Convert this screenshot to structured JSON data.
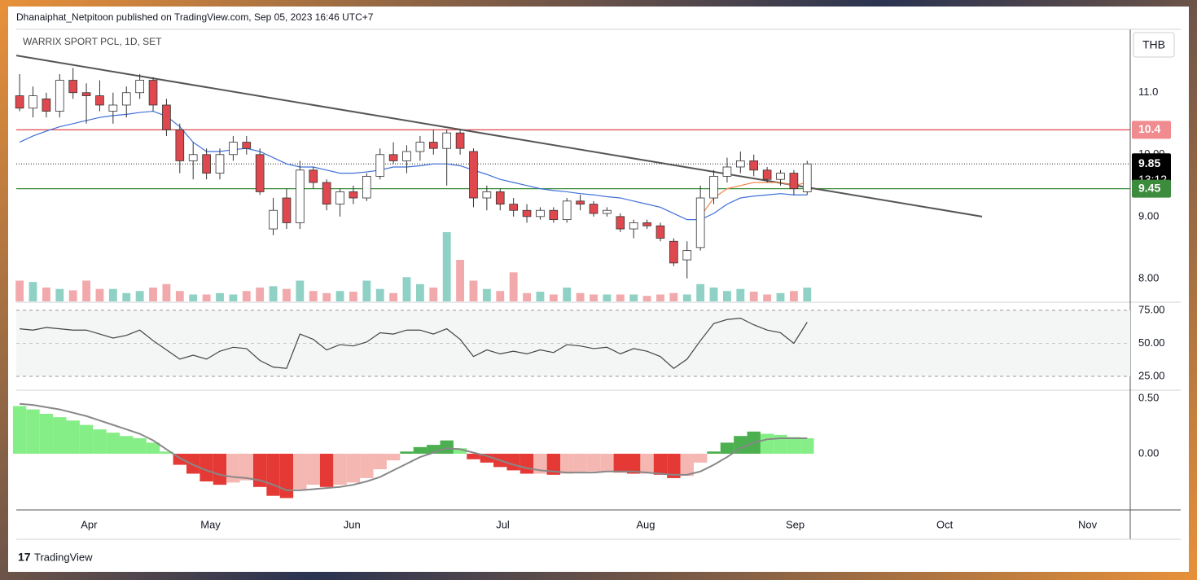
{
  "header": {
    "publisher": "Dhanaiphat_Netpitoon published on TradingView.com, Sep 05, 2023 16:46 UTC+7",
    "symbol": "WARRIX SPORT PCL, 1D, SET",
    "currency": "THB"
  },
  "footer": {
    "logo": "TradingView"
  },
  "chart_data": [
    {
      "type": "candlestick",
      "xlim": [
        -0.25,
        83.2
      ],
      "xticks": [
        {
          "value": 5.2,
          "label": "Apr"
        },
        {
          "value": 14.3,
          "label": "May"
        },
        {
          "value": 24.9,
          "label": "Jun"
        },
        {
          "value": 36.2,
          "label": "Jul"
        },
        {
          "value": 46.9,
          "label": "Aug"
        },
        {
          "value": 58.1,
          "label": "Sep"
        },
        {
          "value": 69.3,
          "label": "Oct"
        },
        {
          "value": 80,
          "label": "Nov"
        }
      ],
      "ylim": [
        7.63,
        11.97
      ],
      "yticks": [
        8,
        9,
        10,
        11
      ],
      "ytick_labels": [
        "8.00",
        "9.00",
        "10.00",
        "11.0"
      ],
      "up_color": "#ffffff",
      "down_color": "#e0484f",
      "volume_up_color": "#8fd1c4",
      "volume_down_color": "#f2a9ac",
      "open": [
        10.95,
        10.75,
        10.9,
        10.7,
        11.2,
        11.0,
        10.95,
        10.7,
        10.8,
        11.0,
        11.2,
        10.8,
        10.4,
        9.9,
        10.0,
        9.7,
        10.0,
        10.2,
        10.0,
        8.8,
        9.3,
        8.9,
        9.75,
        9.55,
        9.2,
        9.4,
        9.3,
        9.65,
        10.0,
        9.9,
        10.05,
        10.2,
        10.1,
        10.35,
        10.05,
        9.3,
        9.4,
        9.2,
        9.1,
        9.0,
        9.1,
        8.95,
        9.25,
        9.2,
        9.05,
        9.0,
        8.8,
        8.9,
        8.85,
        8.6,
        8.3,
        8.5,
        9.3,
        9.65,
        9.8,
        9.9,
        9.75,
        9.6,
        9.7,
        9.4
      ],
      "high": [
        11.3,
        11.1,
        11.0,
        11.3,
        11.4,
        11.15,
        11.2,
        11.0,
        11.1,
        11.3,
        11.25,
        10.9,
        10.5,
        10.2,
        10.1,
        10.1,
        10.3,
        10.3,
        10.1,
        9.3,
        9.45,
        9.9,
        9.8,
        9.6,
        9.45,
        9.5,
        9.7,
        10.1,
        10.2,
        10.15,
        10.3,
        10.4,
        10.4,
        10.4,
        10.1,
        9.5,
        9.45,
        9.3,
        9.2,
        9.15,
        9.15,
        9.3,
        9.35,
        9.25,
        9.15,
        9.05,
        8.95,
        8.95,
        8.9,
        8.65,
        8.6,
        9.5,
        9.75,
        9.95,
        10.05,
        10.0,
        9.8,
        9.75,
        9.75,
        9.9
      ],
      "low": [
        10.7,
        10.6,
        10.6,
        10.6,
        10.9,
        10.5,
        10.7,
        10.5,
        10.6,
        10.9,
        10.7,
        10.3,
        9.7,
        9.6,
        9.6,
        9.6,
        9.9,
        10.0,
        9.35,
        8.7,
        8.8,
        8.8,
        9.45,
        9.1,
        9.0,
        9.2,
        9.25,
        9.6,
        9.85,
        9.7,
        9.9,
        10.0,
        9.5,
        10.0,
        9.15,
        9.1,
        9.1,
        9.0,
        8.9,
        8.95,
        8.9,
        8.9,
        9.1,
        9.0,
        9.0,
        8.75,
        8.65,
        8.8,
        8.6,
        8.2,
        8.0,
        8.45,
        9.2,
        9.55,
        9.7,
        9.65,
        9.55,
        9.5,
        9.35,
        9.35
      ],
      "close": [
        10.75,
        10.95,
        10.7,
        11.2,
        11.0,
        10.95,
        10.8,
        10.8,
        11.0,
        11.2,
        10.8,
        10.4,
        9.9,
        10.0,
        9.7,
        10.0,
        10.2,
        10.1,
        9.4,
        9.1,
        8.9,
        9.75,
        9.55,
        9.2,
        9.4,
        9.3,
        9.65,
        10.0,
        9.9,
        10.05,
        10.2,
        10.1,
        10.35,
        10.1,
        9.3,
        9.4,
        9.2,
        9.1,
        9.0,
        9.1,
        8.95,
        9.25,
        9.2,
        9.05,
        9.1,
        8.8,
        8.9,
        8.85,
        8.65,
        8.25,
        8.45,
        9.3,
        9.65,
        9.8,
        9.9,
        9.75,
        9.6,
        9.7,
        9.45,
        9.85
      ],
      "volume": [
        30,
        28,
        20,
        18,
        16,
        30,
        18,
        18,
        12,
        15,
        20,
        25,
        15,
        10,
        10,
        12,
        10,
        15,
        20,
        22,
        18,
        30,
        15,
        12,
        15,
        14,
        30,
        18,
        12,
        35,
        25,
        20,
        100,
        60,
        30,
        18,
        15,
        42,
        12,
        14,
        10,
        20,
        12,
        10,
        10,
        10,
        10,
        8,
        10,
        12,
        10,
        25,
        20,
        15,
        18,
        14,
        10,
        12,
        15,
        20
      ],
      "series": [
        {
          "color": "#3f6fd8",
          "values": [
            10.2,
            10.3,
            10.38,
            10.45,
            10.5,
            10.55,
            10.6,
            10.63,
            10.65,
            10.68,
            10.7,
            10.62,
            10.45,
            10.2,
            10.05,
            10.05,
            10.08,
            10.1,
            10.05,
            9.95,
            9.85,
            9.8,
            9.8,
            9.75,
            9.7,
            9.7,
            9.72,
            9.75,
            9.8,
            9.8,
            9.82,
            9.85,
            9.85,
            9.82,
            9.75,
            9.68,
            9.6,
            9.55,
            9.5,
            9.45,
            9.42,
            9.4,
            9.37,
            9.35,
            9.32,
            9.3,
            9.25,
            9.2,
            9.15,
            9.05,
            8.95,
            8.95,
            9.05,
            9.2,
            9.3,
            9.33,
            9.35,
            9.37,
            9.35,
            9.35
          ]
        },
        {
          "color": "#f0864a",
          "values": [
            null,
            null,
            null,
            null,
            null,
            null,
            null,
            null,
            null,
            null,
            null,
            null,
            null,
            null,
            null,
            null,
            null,
            null,
            null,
            null,
            null,
            null,
            null,
            null,
            null,
            null,
            null,
            null,
            null,
            null,
            null,
            null,
            null,
            null,
            null,
            null,
            null,
            null,
            null,
            null,
            null,
            null,
            null,
            null,
            null,
            null,
            null,
            null,
            null,
            null,
            null,
            9.0,
            9.3,
            9.45,
            9.5,
            9.55,
            9.55,
            9.55,
            9.5,
            9.55
          ]
        }
      ],
      "trendline": {
        "color": "#555555",
        "x": [
          -0.25,
          72.1
        ],
        "y": [
          11.6,
          9.0
        ]
      },
      "hlines": [
        {
          "value": 10.4,
          "color": "#e0484f",
          "label": "10.4"
        },
        {
          "value": 9.85,
          "color": "#000000",
          "label": "9.85",
          "countdown": "13:12",
          "dotted": true
        },
        {
          "value": 9.45,
          "color": "#3d8b3d",
          "label": "9.45"
        }
      ]
    },
    {
      "type": "line",
      "ylim": [
        15.1,
        80.5
      ],
      "yticks": [
        {
          "value": 75,
          "label": "75.00"
        },
        {
          "value": 50,
          "label": "50.00"
        },
        {
          "value": 25,
          "label": "25.00"
        }
      ],
      "color": "#444444",
      "values": [
        61,
        60,
        62,
        61,
        60,
        60,
        57,
        54,
        56,
        60,
        52,
        45,
        38,
        41,
        38,
        44,
        47,
        46,
        37,
        32,
        31,
        57,
        53,
        45,
        49,
        48,
        51,
        58,
        57,
        60,
        60,
        57,
        61,
        53,
        40,
        45,
        42,
        44,
        42,
        45,
        43,
        49,
        48,
        46,
        47,
        42,
        46,
        44,
        40,
        31,
        38,
        52,
        65,
        68,
        69,
        64,
        60,
        58,
        50,
        66
      ]
    },
    {
      "type": "bar",
      "ylim": [
        -0.5,
        0.566
      ],
      "yticks": [
        {
          "value": 0.5,
          "label": "0.50"
        },
        {
          "value": 0,
          "label": "0.00"
        }
      ],
      "colors": {
        "up_rising": "#4caf50",
        "up_falling": "#86ee86",
        "down_falling": "#e53935",
        "down_rising": "#f5b7b1"
      },
      "values": [
        0.43,
        0.4,
        0.36,
        0.33,
        0.3,
        0.26,
        0.22,
        0.19,
        0.16,
        0.14,
        0.1,
        0.02,
        -0.1,
        -0.18,
        -0.25,
        -0.28,
        -0.26,
        -0.24,
        -0.3,
        -0.38,
        -0.4,
        -0.32,
        -0.28,
        -0.3,
        -0.28,
        -0.26,
        -0.22,
        -0.14,
        -0.06,
        0.02,
        0.06,
        0.08,
        0.12,
        0.05,
        -0.05,
        -0.08,
        -0.12,
        -0.15,
        -0.18,
        -0.18,
        -0.19,
        -0.18,
        -0.17,
        -0.16,
        -0.16,
        -0.17,
        -0.18,
        -0.18,
        -0.19,
        -0.22,
        -0.2,
        -0.08,
        0.02,
        0.1,
        0.16,
        0.2,
        0.18,
        0.17,
        0.15,
        0.14
      ],
      "signal": {
        "color": "#888888",
        "values": [
          0.45,
          0.44,
          0.42,
          0.4,
          0.37,
          0.34,
          0.3,
          0.26,
          0.22,
          0.18,
          0.12,
          0.04,
          -0.04,
          -0.1,
          -0.15,
          -0.19,
          -0.21,
          -0.22,
          -0.24,
          -0.28,
          -0.33,
          -0.33,
          -0.32,
          -0.31,
          -0.3,
          -0.28,
          -0.25,
          -0.21,
          -0.15,
          -0.09,
          -0.03,
          0.01,
          0.05,
          0.04,
          0.01,
          -0.02,
          -0.06,
          -0.1,
          -0.13,
          -0.15,
          -0.16,
          -0.17,
          -0.17,
          -0.17,
          -0.16,
          -0.16,
          -0.16,
          -0.17,
          -0.18,
          -0.19,
          -0.19,
          -0.16,
          -0.1,
          -0.03,
          0.05,
          0.1,
          0.13,
          0.14,
          0.14,
          0.14
        ]
      }
    }
  ]
}
